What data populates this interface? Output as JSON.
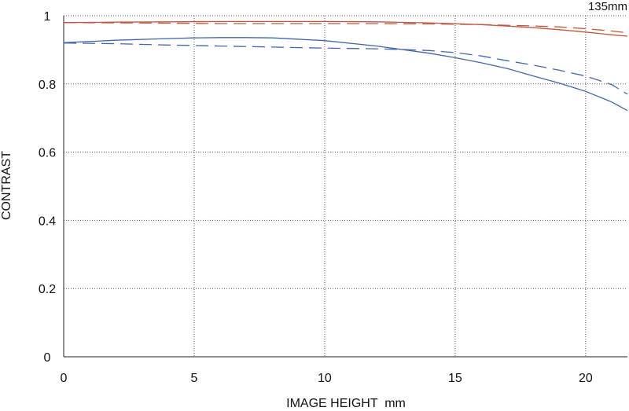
{
  "chart_data": {
    "type": "line",
    "corner_label": "135mm",
    "xlabel": "IMAGE HEIGHT  mm",
    "ylabel": "CONTRAST",
    "xlim": [
      0,
      21.6
    ],
    "ylim": [
      0,
      1
    ],
    "x_ticks": [
      0,
      5,
      10,
      15,
      20
    ],
    "x_tick_labels": [
      "0",
      "5",
      "10",
      "15",
      "20"
    ],
    "y_ticks": [
      0,
      0.2,
      0.4,
      0.6,
      0.8,
      1
    ],
    "y_tick_labels": [
      "0",
      "0.2",
      "0.4",
      "0.6",
      "0.8",
      "1"
    ],
    "grid": true,
    "series": [
      {
        "color": "#c8553a",
        "dash": "solid",
        "x": [
          0,
          2,
          4,
          6,
          8,
          10,
          12,
          14,
          16,
          18,
          19,
          20,
          21,
          21.6
        ],
        "y": [
          0.98,
          0.981,
          0.982,
          0.983,
          0.983,
          0.983,
          0.982,
          0.979,
          0.974,
          0.965,
          0.959,
          0.952,
          0.944,
          0.94
        ]
      },
      {
        "color": "#c8553a",
        "dash": "dashed",
        "x": [
          0,
          2,
          4,
          6,
          8,
          10,
          12,
          14,
          16,
          18,
          19,
          20,
          21,
          21.6
        ],
        "y": [
          0.98,
          0.979,
          0.978,
          0.977,
          0.977,
          0.977,
          0.977,
          0.976,
          0.974,
          0.97,
          0.967,
          0.962,
          0.955,
          0.95
        ]
      },
      {
        "color": "#3e66b5",
        "dash": "solid",
        "x": [
          0,
          2,
          4,
          5,
          6,
          7,
          8,
          10,
          12,
          14,
          15,
          16,
          17,
          18,
          19,
          20,
          21,
          21.6
        ],
        "y": [
          0.921,
          0.928,
          0.933,
          0.935,
          0.936,
          0.936,
          0.935,
          0.927,
          0.911,
          0.89,
          0.877,
          0.862,
          0.845,
          0.823,
          0.802,
          0.778,
          0.747,
          0.722
        ]
      },
      {
        "color": "#3e66b5",
        "dash": "dashed",
        "x": [
          0,
          2,
          4,
          6,
          8,
          10,
          12,
          13,
          14,
          15,
          16,
          17,
          18,
          19,
          20,
          21,
          21.6
        ],
        "y": [
          0.92,
          0.918,
          0.914,
          0.911,
          0.908,
          0.905,
          0.903,
          0.901,
          0.898,
          0.892,
          0.882,
          0.868,
          0.855,
          0.84,
          0.823,
          0.798,
          0.77
        ]
      }
    ]
  }
}
